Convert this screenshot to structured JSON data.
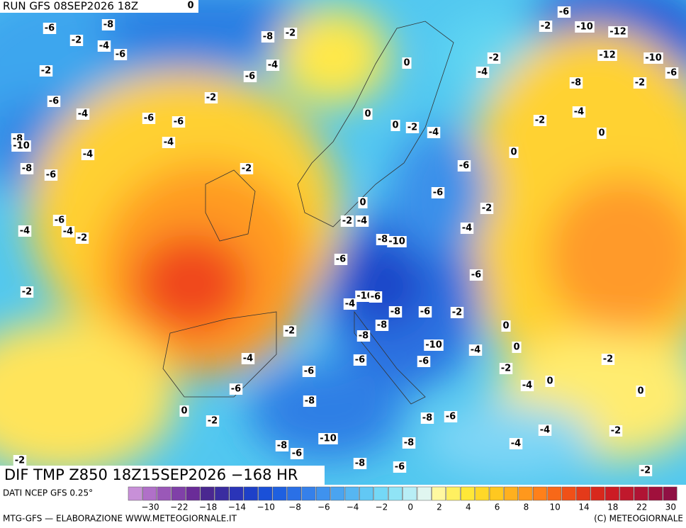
{
  "header": {
    "run": "RUN GFS 08SEP2026 18Z"
  },
  "map": {
    "contour_labels": [
      0,
      -6,
      -8,
      -2,
      -4,
      -6,
      -2,
      -8,
      -2,
      -4,
      -6,
      -2,
      -6,
      -4,
      -6,
      -6,
      -4,
      -8,
      -10,
      -4,
      -8,
      -6,
      -2,
      0,
      0,
      0,
      -2,
      -4,
      -6,
      -10,
      -12,
      -2,
      -2,
      -4,
      -12,
      -10,
      -6,
      -8,
      -2,
      -4,
      -2,
      0,
      0,
      -6,
      -6,
      -2,
      -4,
      0,
      -2,
      -4,
      -6,
      -4,
      -4,
      -2,
      -8,
      -10,
      -6,
      -6,
      -2,
      -10,
      -6,
      -4,
      -8,
      -6,
      -2,
      -8,
      -2,
      0,
      -8,
      -10,
      -4,
      0,
      -4,
      -6,
      -6,
      -2,
      -2,
      -6,
      -6,
      -4,
      0,
      0,
      -8,
      0,
      -2,
      -8,
      -6,
      -4,
      -2,
      -10,
      -8,
      -6,
      -8,
      -4,
      -2,
      -8,
      -6,
      -2
    ]
  },
  "footer": {
    "title": "DIF TMP Z850 18Z15SEP2026 −168 HR",
    "source": "DATI NCEP GFS 0.25°",
    "scale_ticks": [
      {
        "value": -30,
        "label": "−30"
      },
      {
        "value": -22,
        "label": "−22"
      },
      {
        "value": -18,
        "label": "−18"
      },
      {
        "value": -14,
        "label": "−14"
      },
      {
        "value": -10,
        "label": "−10"
      },
      {
        "value": -8,
        "label": "−8"
      },
      {
        "value": -6,
        "label": "−6"
      },
      {
        "value": -4,
        "label": "−4"
      },
      {
        "value": -2,
        "label": "−2"
      },
      0,
      2,
      4,
      6,
      8,
      10,
      14,
      18,
      22,
      30
    ],
    "credit_left": "MTG-GFS — ELABORAZIONE WWW.METEOGIORNALE.IT",
    "credit_right": "(C) METEOGIORNALE"
  }
}
